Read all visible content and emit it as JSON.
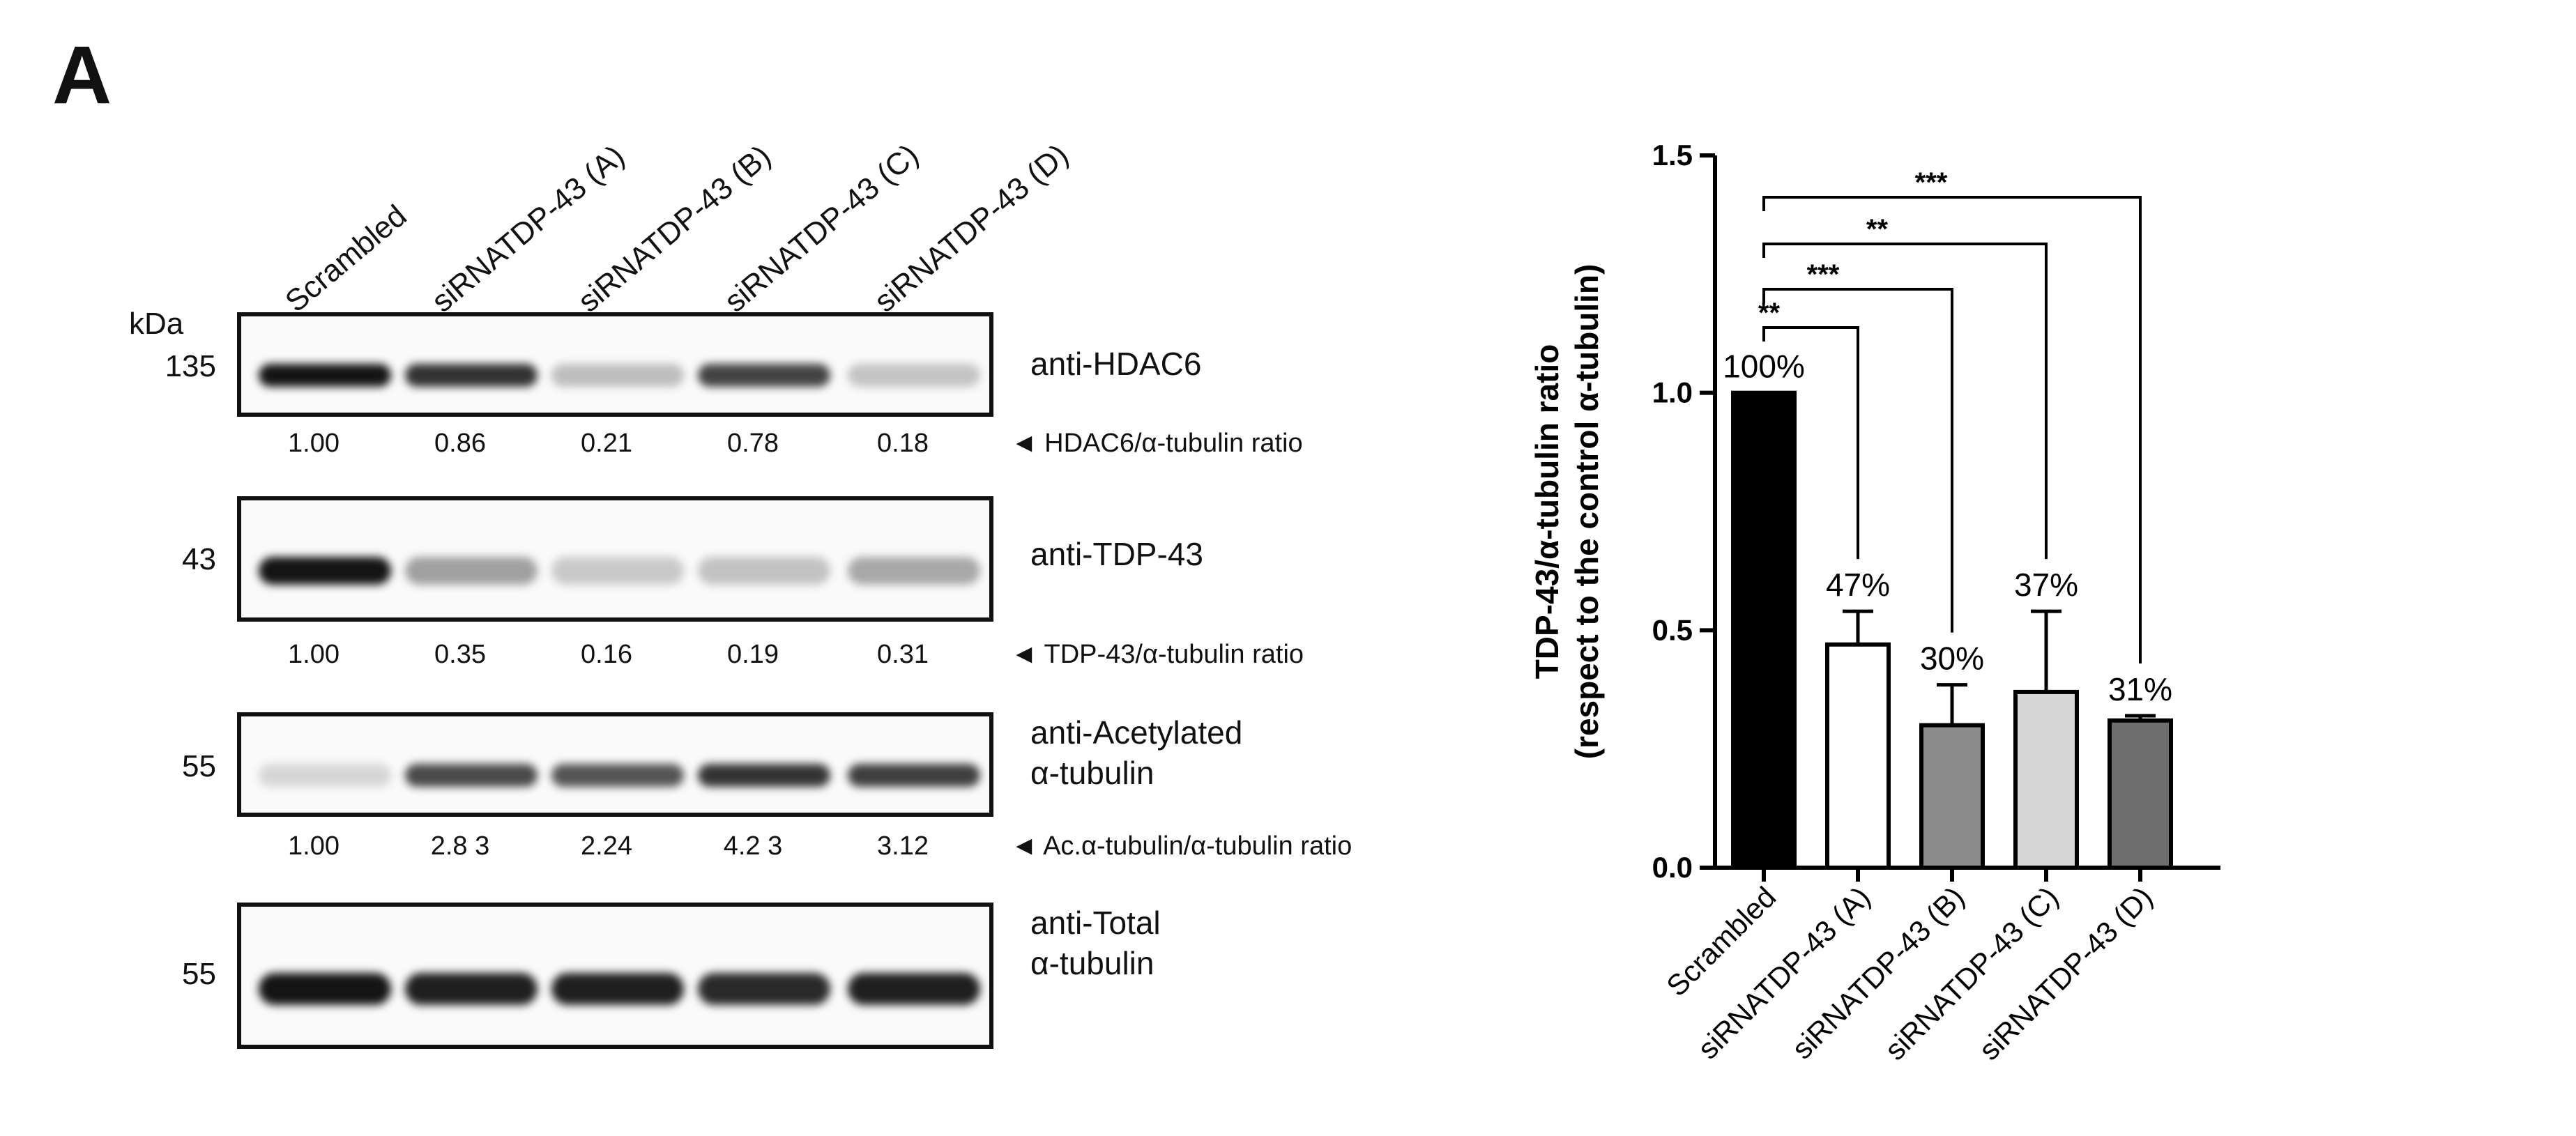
{
  "panel_letter": "A",
  "lanes": [
    "Scrambled",
    "siRNATDP-43 (A)",
    "siRNATDP-43 (B)",
    "siRNATDP-43 (C)",
    "siRNATDP-43 (D)"
  ],
  "kda_label": "kDa",
  "blots": [
    {
      "mw": "135",
      "antibody": "anti-HDAC6",
      "ratios": [
        "1.00",
        "0.86",
        "0.21",
        "0.78",
        "0.18"
      ],
      "ratio_label": "◄ HDAC6/α-tubulin ratio",
      "intensity": [
        1.0,
        0.86,
        0.21,
        0.78,
        0.18
      ]
    },
    {
      "mw": "43",
      "antibody": "anti-TDP-43",
      "ratios": [
        "1.00",
        "0.35",
        "0.16",
        "0.19",
        "0.31"
      ],
      "ratio_label": "◄ TDP-43/α-tubulin ratio",
      "intensity": [
        1.0,
        0.35,
        0.16,
        0.19,
        0.31
      ]
    },
    {
      "mw": "55",
      "antibody": "anti-Acetylated\nα-tubulin",
      "ratios": [
        "1.00",
        "2.8 3",
        "2.24",
        "4.2 3",
        "3.12"
      ],
      "ratio_label": "◄ Ac.α-tubulin/α-tubulin ratio",
      "intensity": [
        0.1,
        0.75,
        0.7,
        0.85,
        0.8
      ]
    },
    {
      "mw": "55",
      "antibody": "anti-Total\nα-tubulin",
      "ratio_label": "",
      "intensity": [
        1.0,
        0.95,
        0.95,
        0.9,
        0.95
      ]
    }
  ],
  "chart_data": {
    "type": "bar",
    "categories": [
      "Scrambled",
      "siRNATDP-43 (A)",
      "siRNATDP-43 (B)",
      "siRNATDP-43 (C)",
      "siRNATDP-43 (D)"
    ],
    "values": [
      1.0,
      0.47,
      0.3,
      0.37,
      0.31
    ],
    "errors": [
      0,
      0.07,
      0.085,
      0.17,
      0.01
    ],
    "bar_labels": [
      "100%",
      "47%",
      "30%",
      "37%",
      "31%"
    ],
    "bar_colors": [
      "#000000",
      "#ffffff",
      "#8c8c8c",
      "#d6d6d6",
      "#6e6e6e"
    ],
    "ylabel_line1": "TDP-43/α-tubulin ratio",
    "ylabel_line2": "(respect to the control α-tubulin)",
    "ylim": [
      0,
      1.5
    ],
    "yticks": [
      "0.0",
      "0.5",
      "1.0",
      "1.5"
    ],
    "significance": [
      {
        "to": 1,
        "label": "**"
      },
      {
        "to": 2,
        "label": "***"
      },
      {
        "to": 3,
        "label": "**"
      },
      {
        "to": 4,
        "label": "***"
      }
    ]
  }
}
